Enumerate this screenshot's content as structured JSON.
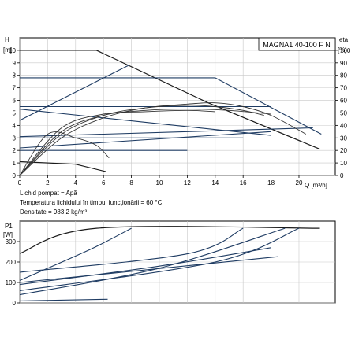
{
  "chart_data": [
    {
      "type": "line",
      "title": "MAGNA1 40-100 F N",
      "left_axis": {
        "label_top": "H",
        "unit": "[m]",
        "ylim": [
          0,
          11
        ],
        "ticks": [
          0,
          1,
          2,
          3,
          4,
          5,
          6,
          7,
          8,
          9,
          10
        ]
      },
      "right_axis": {
        "label_top": "eta",
        "unit": "[%]",
        "ylim": [
          0,
          110
        ],
        "ticks": [
          0,
          10,
          20,
          30,
          40,
          50,
          60,
          70,
          80,
          90,
          100
        ]
      },
      "x_axis": {
        "label": "Q [m³/h]",
        "xlim": [
          0,
          22.6
        ],
        "ticks": [
          0,
          2,
          4,
          6,
          8,
          10,
          12,
          14,
          16,
          18,
          20
        ]
      },
      "grid": true,
      "head_series": [
        {
          "kind": "max-curve",
          "x": [
            0,
            5.5,
            13.5,
            21.5
          ],
          "y": [
            10,
            10,
            5.8,
            2.1
          ]
        },
        {
          "kind": "constant-pressure",
          "x": [
            0,
            14,
            21.6
          ],
          "y": [
            7.8,
            7.8,
            3.3
          ]
        },
        {
          "kind": "constant",
          "x": [
            0,
            18
          ],
          "y": [
            5.5,
            5.5
          ]
        },
        {
          "kind": "constant",
          "x": [
            0,
            16
          ],
          "y": [
            3.0,
            3.0
          ]
        },
        {
          "kind": "constant",
          "x": [
            0,
            12
          ],
          "y": [
            2.0,
            2.0
          ]
        },
        {
          "kind": "proportional",
          "x": [
            0,
            7.8
          ],
          "y": [
            4.4,
            8.8
          ]
        },
        {
          "kind": "proportional",
          "x": [
            0,
            21
          ],
          "y": [
            3.1,
            3.8
          ]
        },
        {
          "kind": "proportional",
          "x": [
            0,
            18
          ],
          "y": [
            2.2,
            3.5
          ]
        },
        {
          "kind": "proportional",
          "x": [
            0,
            18
          ],
          "y": [
            5.3,
            3.2
          ]
        },
        {
          "kind": "min-curve",
          "x": [
            0,
            4,
            6.2
          ],
          "y": [
            1.1,
            0.9,
            0.3
          ]
        }
      ],
      "eta_series": [
        {
          "x": [
            0,
            3,
            6,
            9,
            12,
            14,
            16,
            18,
            20.5
          ],
          "y": [
            0,
            30,
            46,
            54,
            57,
            58,
            55,
            48,
            33
          ]
        },
        {
          "x": [
            0,
            3,
            6,
            9,
            12,
            14,
            16,
            17.5
          ],
          "y": [
            0,
            33,
            48,
            54,
            56,
            55,
            52,
            48
          ]
        },
        {
          "x": [
            0,
            3,
            6,
            9,
            12,
            15,
            18
          ],
          "y": [
            0,
            35,
            48,
            52,
            53,
            52,
            49
          ]
        },
        {
          "x": [
            0,
            3,
            6,
            9,
            12,
            14
          ],
          "y": [
            0,
            38,
            49,
            51,
            52,
            51
          ]
        },
        {
          "x": [
            0,
            2,
            4,
            5.5,
            6.4
          ],
          "y": [
            0,
            33,
            30,
            24,
            14
          ]
        }
      ],
      "notes": [
        "Lichid pompat = Apă",
        "Temperatura lichidului în timpul funcţionării = 60 °C",
        "Densitate = 983.2 kg/m³"
      ]
    },
    {
      "type": "line",
      "y_axis": {
        "label_top": "P1",
        "unit": "[W]",
        "ylim": [
          0,
          400
        ],
        "ticks": [
          0,
          100,
          200,
          300
        ]
      },
      "x_axis": {
        "xlim": [
          0,
          22.6
        ]
      },
      "grid": true,
      "series": [
        {
          "kind": "max",
          "x": [
            0,
            5.5,
            21.5
          ],
          "y": [
            242,
            365,
            365
          ]
        },
        {
          "kind": "limit",
          "x": [
            0,
            10,
            19
          ],
          "y": [
            40,
            170,
            365
          ]
        },
        {
          "kind": "limit",
          "x": [
            0,
            14,
            20
          ],
          "y": [
            60,
            200,
            365
          ]
        },
        {
          "kind": "line",
          "x": [
            0,
            5,
            8
          ],
          "y": [
            110,
            260,
            365
          ]
        },
        {
          "kind": "line",
          "x": [
            0,
            12,
            16
          ],
          "y": [
            150,
            240,
            365
          ]
        },
        {
          "kind": "line",
          "x": [
            0,
            10,
            18
          ],
          "y": [
            90,
            180,
            270
          ]
        },
        {
          "kind": "line",
          "x": [
            0,
            18.5
          ],
          "y": [
            100,
            226
          ]
        },
        {
          "kind": "line",
          "x": [
            0,
            6.3
          ],
          "y": [
            10,
            18
          ]
        }
      ]
    }
  ]
}
